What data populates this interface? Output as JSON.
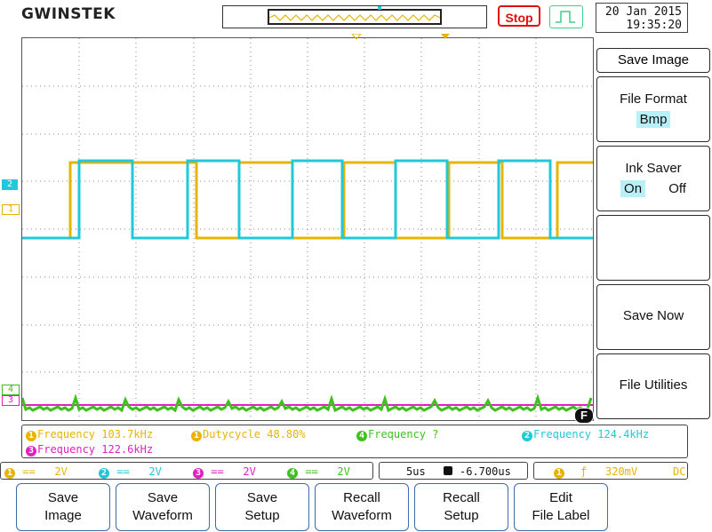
{
  "brand": "GWINSTEK",
  "run_state": "Stop",
  "datetime": {
    "date": "20 Jan 2015",
    "time": "19:35:20"
  },
  "channel_markers": [
    "2",
    "1",
    "4",
    "3"
  ],
  "side_menu": {
    "title": "Save Image",
    "file_format_label": "File Format",
    "file_format_value": "Bmp",
    "ink_saver_label": "Ink Saver",
    "ink_saver_on": "On",
    "ink_saver_off": "Off",
    "save_now": "Save Now",
    "file_utilities": "File Utilities"
  },
  "measurements": {
    "ch1_freq": "Frequency 103.7kHz",
    "ch1_duty": "Dutycycle 48.80%",
    "ch4_freq": "Frequency ?",
    "ch2_freq": "Frequency 124.4kHz",
    "ch3_freq": "Frequency 122.6kHz"
  },
  "status_bar": {
    "ch1": {
      "num": "1",
      "coupling": "==",
      "scale": "2V"
    },
    "ch2": {
      "num": "2",
      "coupling": "==",
      "scale": "2V"
    },
    "ch3": {
      "num": "3",
      "coupling": "==",
      "scale": "2V"
    },
    "ch4": {
      "num": "4",
      "coupling": "==",
      "scale": "2V"
    },
    "timebase": "5us",
    "position": "-6.700us",
    "trigger_source": "1",
    "trigger_level": "320mV",
    "trigger_coupling": "DC"
  },
  "f_button": "F",
  "softkeys": [
    {
      "line1": "Save",
      "line2": "Image"
    },
    {
      "line1": "Save",
      "line2": "Waveform"
    },
    {
      "line1": "Save",
      "line2": "Setup"
    },
    {
      "line1": "Recall",
      "line2": "Waveform"
    },
    {
      "line1": "Recall",
      "line2": "Setup"
    },
    {
      "line1": "Edit",
      "line2": "File Label"
    }
  ],
  "colors": {
    "ch1": "#e8b400",
    "ch2": "#20c8d8",
    "ch3": "#e020c0",
    "ch4": "#40c020",
    "softkey_border": "#3a6ab0"
  }
}
